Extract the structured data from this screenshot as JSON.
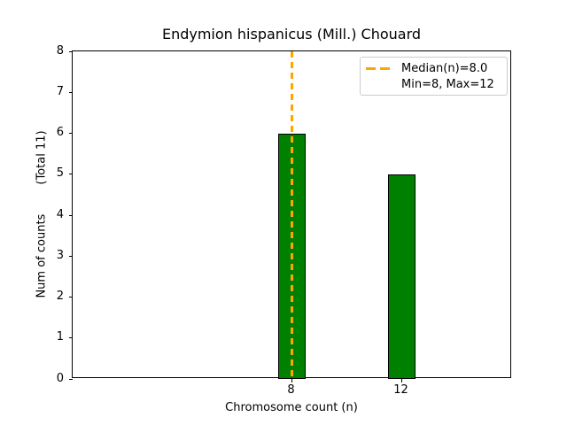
{
  "chart_data": {
    "type": "bar",
    "title": "Endymion hispanicus (Mill.) Chouard",
    "xlabel": "Chromosome count (n)",
    "ylabel": "Num of counts        (Total 11)",
    "total_count": 11,
    "categories": [
      8,
      12
    ],
    "values": [
      6,
      5
    ],
    "xticks": [
      "8",
      "12"
    ],
    "yticks": [
      0,
      1,
      2,
      3,
      4,
      5,
      6,
      7,
      8
    ],
    "ylim": [
      0,
      8
    ],
    "xlim": [
      0,
      16
    ],
    "grid": false,
    "bar_color": "#008000",
    "bar_edge_color": "#000000",
    "median_line": {
      "x": 8.0,
      "color": "#FFA500",
      "linestyle": "dashed"
    },
    "legend": {
      "position": "upper-right",
      "entries": [
        {
          "label": "Median(n)=8.0",
          "sample": "orange-dashed-line"
        },
        {
          "label": "Min=8, Max=12",
          "sample": "none"
        }
      ]
    }
  }
}
